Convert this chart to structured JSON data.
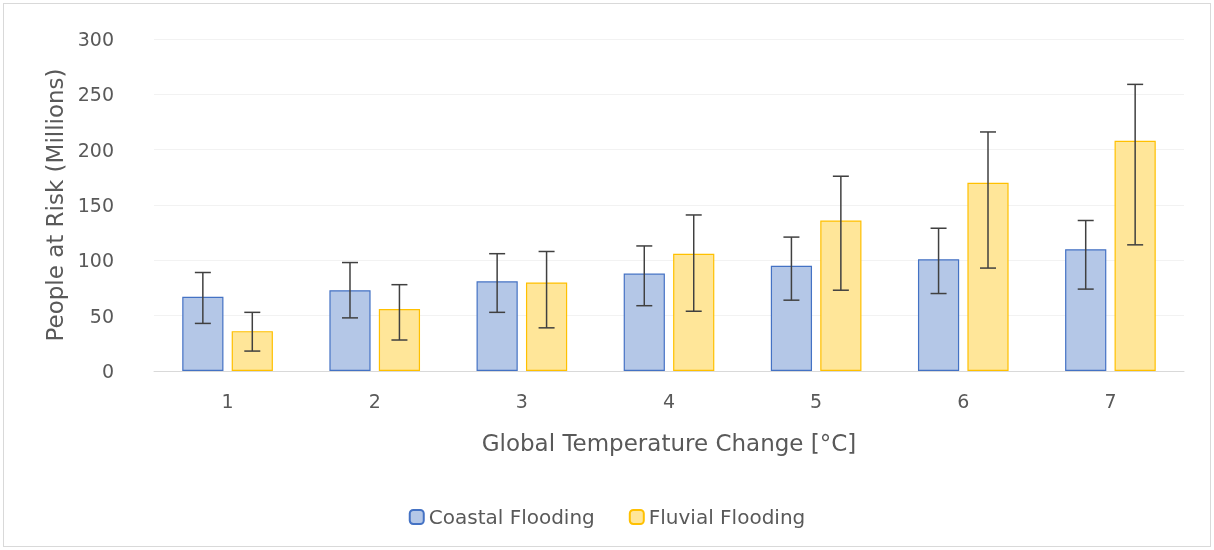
{
  "chart_data": {
    "type": "bar",
    "xlabel": "Global Temperature Change [°C]",
    "ylabel": "People at Risk (Millions)",
    "categories": [
      "1",
      "2",
      "3",
      "4",
      "5",
      "6",
      "7"
    ],
    "series": [
      {
        "name": "Coastal Flooding",
        "color": "#b4c7e7",
        "values": [
          67,
          73,
          81,
          88,
          95,
          101,
          110
        ],
        "errors": [
          [
            43,
            89
          ],
          [
            48,
            98
          ],
          [
            53,
            106
          ],
          [
            59,
            113
          ],
          [
            64,
            121
          ],
          [
            70,
            129
          ],
          [
            74,
            136
          ]
        ]
      },
      {
        "name": "Fluvial Flooding",
        "color": "#ffe699",
        "values": [
          36,
          56,
          80,
          106,
          136,
          170,
          208
        ],
        "errors": [
          [
            18,
            53
          ],
          [
            28,
            78
          ],
          [
            39,
            108
          ],
          [
            54,
            141
          ],
          [
            73,
            176
          ],
          [
            93,
            216
          ],
          [
            114,
            259
          ]
        ]
      }
    ],
    "ylim": [
      0,
      300
    ],
    "yticks": [
      0,
      50,
      100,
      150,
      200,
      250,
      300
    ],
    "grid": "y",
    "legend": "bottom"
  }
}
